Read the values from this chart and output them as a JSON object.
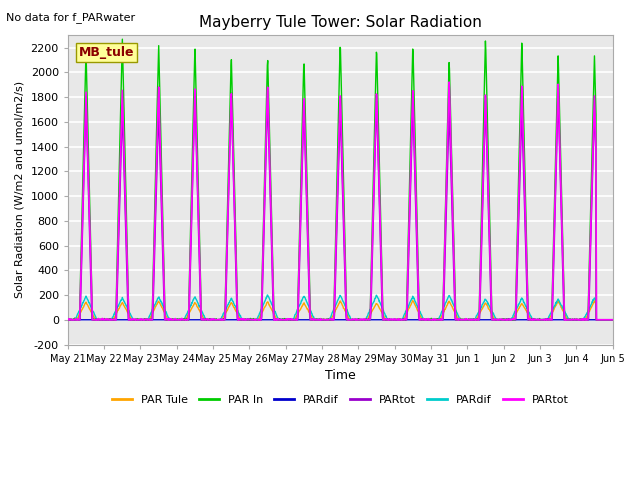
{
  "title": "Mayberry Tule Tower: Solar Radiation",
  "no_data_text": "No data for f_PARwater",
  "ylabel": "Solar Radiation (W/m2 and umol/m2/s)",
  "xlabel": "Time",
  "ylim": [
    -200,
    2300
  ],
  "yticks": [
    -200,
    0,
    200,
    400,
    600,
    800,
    1000,
    1200,
    1400,
    1600,
    1800,
    2000,
    2200
  ],
  "xtick_labels": [
    "May 21",
    "May 22",
    "May 23",
    "May 24",
    "May 25",
    "May 26",
    "May 27",
    "May 28",
    "May 29",
    "May 30",
    "May 31",
    "Jun 1",
    "Jun 2",
    "Jun 3",
    "Jun 4",
    "Jun 5"
  ],
  "legend_labels": [
    "PAR Tule",
    "PAR In",
    "PARdif",
    "PARtot",
    "PARdif",
    "PARtot"
  ],
  "legend_colors": [
    "#FFA500",
    "#00CC00",
    "#0000CC",
    "#9900CC",
    "#00CCCC",
    "#FF00FF"
  ],
  "inset_label": "MB_tule",
  "inset_color": "#8B0000",
  "inset_bg": "#FFFF99",
  "n_days": 15,
  "background_color": "#E8E8E8",
  "grid_color": "white",
  "figsize": [
    6.4,
    4.8
  ],
  "dpi": 100
}
